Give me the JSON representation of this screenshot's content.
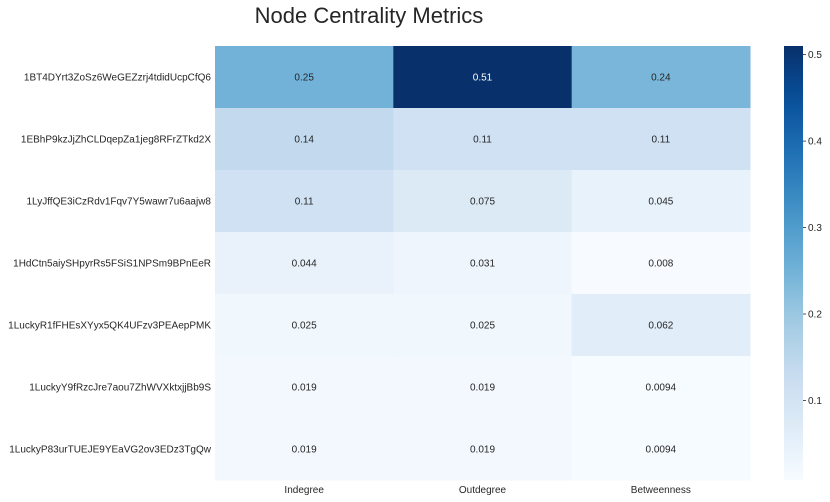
{
  "chart_data": {
    "type": "heatmap",
    "title": "Node Centrality Metrics",
    "columns": [
      "Indegree",
      "Outdegree",
      "Betweenness"
    ],
    "rows": [
      "1BT4DYrt3ZoSz6WeGEZzrj4tdidUcpCfQ6",
      "1EBhP9kzJjZhCLDqepZa1jeg8RFrZTkd2X",
      "1LyJffQE3iCzRdv1Fqv7Y5wawr7u6aajw8",
      "1HdCtn5aiySHpyrRs5FSiS1NPSm9BPnEeR",
      "1LuckyR1fFHEsXYyx5QK4UFzv3PEAepPMK",
      "1LuckyY9fRzcJre7aou7ZhWVXktxjjBb9S",
      "1LuckyP83urTUEJE9YEaVG2ov3EDz3TgQw"
    ],
    "values": [
      [
        0.25,
        0.51,
        0.24
      ],
      [
        0.14,
        0.11,
        0.11
      ],
      [
        0.11,
        0.075,
        0.045
      ],
      [
        0.044,
        0.031,
        0.008
      ],
      [
        0.025,
        0.025,
        0.062
      ],
      [
        0.019,
        0.019,
        0.0094
      ],
      [
        0.019,
        0.019,
        0.0094
      ]
    ],
    "labels": [
      [
        "0.25",
        "0.51",
        "0.24"
      ],
      [
        "0.14",
        "0.11",
        "0.11"
      ],
      [
        "0.11",
        "0.075",
        "0.045"
      ],
      [
        "0.044",
        "0.031",
        "0.008"
      ],
      [
        "0.025",
        "0.025",
        "0.062"
      ],
      [
        "0.019",
        "0.019",
        "0.0094"
      ],
      [
        "0.019",
        "0.019",
        "0.0094"
      ]
    ],
    "colormap": "Blues",
    "vmin": 0.008,
    "vmax": 0.51,
    "colorbar_ticks": [
      0.1,
      0.2,
      0.3,
      0.4,
      0.5
    ],
    "colorbar_tick_labels": [
      "0.1",
      "0.2",
      "0.3",
      "0.4",
      "0.5"
    ]
  }
}
